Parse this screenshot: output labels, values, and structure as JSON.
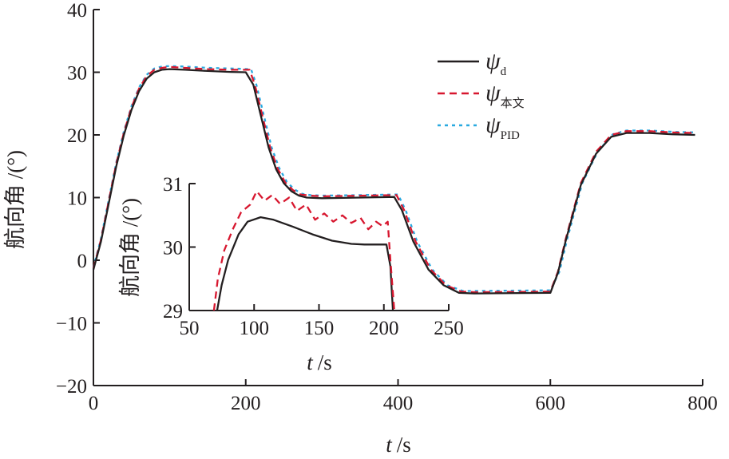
{
  "chart_data": {
    "type": "line",
    "main": {
      "xlabel_var": "t",
      "xlabel_unit": "/s",
      "ylabel": "航向角 /(°)",
      "xlim": [
        0,
        800
      ],
      "ylim": [
        -20,
        40
      ],
      "xticks": [
        "0",
        "200",
        "400",
        "600",
        "800"
      ],
      "yticks": [
        "−20",
        "−10",
        "0",
        "10",
        "20",
        "30",
        "40"
      ],
      "legend_position": "top-right",
      "series": [
        {
          "name": "ψ",
          "sub": "d",
          "color": "#231f20",
          "style": "solid",
          "points": [
            [
              0,
              -1.5
            ],
            [
              10,
              3
            ],
            [
              20,
              9
            ],
            [
              30,
              15
            ],
            [
              40,
              20
            ],
            [
              50,
              24
            ],
            [
              60,
              27
            ],
            [
              70,
              29
            ],
            [
              80,
              30
            ],
            [
              90,
              30.4
            ],
            [
              100,
              30.5
            ],
            [
              120,
              30.4
            ],
            [
              150,
              30.2
            ],
            [
              180,
              30.05
            ],
            [
              200,
              30
            ],
            [
              210,
              28
            ],
            [
              220,
              23
            ],
            [
              230,
              18
            ],
            [
              240,
              14.5
            ],
            [
              250,
              12.3
            ],
            [
              260,
              11
            ],
            [
              270,
              10.3
            ],
            [
              280,
              10
            ],
            [
              300,
              9.9
            ],
            [
              350,
              10
            ],
            [
              395,
              10.1
            ],
            [
              405,
              8
            ],
            [
              420,
              3
            ],
            [
              440,
              -1.5
            ],
            [
              460,
              -4
            ],
            [
              480,
              -5.2
            ],
            [
              500,
              -5.3
            ],
            [
              600,
              -5.2
            ],
            [
              610,
              -2
            ],
            [
              620,
              3
            ],
            [
              640,
              12
            ],
            [
              660,
              17
            ],
            [
              680,
              19.7
            ],
            [
              700,
              20.3
            ],
            [
              730,
              20.3
            ],
            [
              760,
              20.1
            ],
            [
              790,
              20
            ]
          ]
        },
        {
          "name": "ψ",
          "sub": "本文",
          "color": "#d7172f",
          "style": "dashed",
          "points": [
            [
              0,
              -1.3
            ],
            [
              10,
              3.3
            ],
            [
              20,
              9.4
            ],
            [
              30,
              15.4
            ],
            [
              40,
              20.4
            ],
            [
              50,
              24.4
            ],
            [
              60,
              27.4
            ],
            [
              70,
              29.4
            ],
            [
              80,
              30.4
            ],
            [
              90,
              30.7
            ],
            [
              100,
              30.85
            ],
            [
              120,
              30.7
            ],
            [
              150,
              30.5
            ],
            [
              180,
              30.4
            ],
            [
              205,
              30.4
            ],
            [
              212,
              28
            ],
            [
              222,
              23
            ],
            [
              232,
              18
            ],
            [
              242,
              14.6
            ],
            [
              252,
              12.4
            ],
            [
              262,
              11.2
            ],
            [
              272,
              10.5
            ],
            [
              285,
              10.3
            ],
            [
              300,
              10.2
            ],
            [
              350,
              10.3
            ],
            [
              398,
              10.4
            ],
            [
              408,
              8
            ],
            [
              423,
              3
            ],
            [
              443,
              -1.5
            ],
            [
              463,
              -4
            ],
            [
              483,
              -5
            ],
            [
              500,
              -5.1
            ],
            [
              600,
              -5
            ],
            [
              610,
              -1.8
            ],
            [
              620,
              3.3
            ],
            [
              640,
              12.3
            ],
            [
              660,
              17.3
            ],
            [
              680,
              20
            ],
            [
              700,
              20.6
            ],
            [
              730,
              20.6
            ],
            [
              760,
              20.4
            ],
            [
              790,
              20.3
            ]
          ]
        },
        {
          "name": "ψ",
          "sub": "PID",
          "color": "#29a9e0",
          "style": "dotted",
          "points": [
            [
              0,
              -1.2
            ],
            [
              10,
              3.5
            ],
            [
              20,
              9.6
            ],
            [
              30,
              15.6
            ],
            [
              40,
              20.6
            ],
            [
              50,
              24.6
            ],
            [
              60,
              27.6
            ],
            [
              70,
              29.6
            ],
            [
              80,
              30.6
            ],
            [
              90,
              30.9
            ],
            [
              100,
              31
            ],
            [
              120,
              30.9
            ],
            [
              150,
              30.7
            ],
            [
              180,
              30.6
            ],
            [
              207,
              30.5
            ],
            [
              214,
              28
            ],
            [
              224,
              23
            ],
            [
              234,
              18
            ],
            [
              244,
              14.7
            ],
            [
              254,
              12.5
            ],
            [
              264,
              11.3
            ],
            [
              274,
              10.6
            ],
            [
              285,
              10.4
            ],
            [
              300,
              10.3
            ],
            [
              350,
              10.4
            ],
            [
              400,
              10.5
            ],
            [
              410,
              8
            ],
            [
              425,
              3
            ],
            [
              445,
              -1.5
            ],
            [
              465,
              -4
            ],
            [
              485,
              -4.9
            ],
            [
              500,
              -4.9
            ],
            [
              600,
              -4.8
            ],
            [
              612,
              -1.8
            ],
            [
              622,
              3.3
            ],
            [
              642,
              12.3
            ],
            [
              662,
              17.3
            ],
            [
              682,
              20.1
            ],
            [
              700,
              20.7
            ],
            [
              730,
              20.7
            ],
            [
              760,
              20.5
            ],
            [
              790,
              20.4
            ]
          ]
        }
      ]
    },
    "inset": {
      "xlabel_var": "t",
      "xlabel_unit": "/s",
      "ylabel": "航向角 /(°)",
      "xlim": [
        50,
        250
      ],
      "ylim": [
        29,
        31
      ],
      "xticks": [
        "50",
        "100",
        "150",
        "200",
        "250"
      ],
      "yticks": [
        "29",
        "30",
        "31"
      ],
      "series": [
        {
          "name": "ψd",
          "color": "#231f20",
          "style": "solid",
          "points": [
            [
              71.5,
              29
            ],
            [
              75,
              29.4
            ],
            [
              80,
              29.8
            ],
            [
              88,
              30.2
            ],
            [
              95,
              30.4
            ],
            [
              105,
              30.47
            ],
            [
              115,
              30.43
            ],
            [
              130,
              30.32
            ],
            [
              145,
              30.2
            ],
            [
              160,
              30.1
            ],
            [
              175,
              30.05
            ],
            [
              185,
              30.04
            ],
            [
              202,
              30.04
            ],
            [
              205,
              29.7
            ],
            [
              207,
              29
            ]
          ]
        },
        {
          "name": "ψ本文",
          "color": "#d7172f",
          "style": "dashed",
          "points": [
            [
              69,
              29
            ],
            [
              72,
              29.5
            ],
            [
              77,
              29.95
            ],
            [
              84,
              30.3
            ],
            [
              90,
              30.55
            ],
            [
              97,
              30.67
            ],
            [
              102,
              30.88
            ],
            [
              108,
              30.73
            ],
            [
              114,
              30.82
            ],
            [
              120,
              30.68
            ],
            [
              127,
              30.78
            ],
            [
              133,
              30.57
            ],
            [
              140,
              30.67
            ],
            [
              147,
              30.43
            ],
            [
              154,
              30.53
            ],
            [
              161,
              30.4
            ],
            [
              168,
              30.5
            ],
            [
              175,
              30.38
            ],
            [
              182,
              30.46
            ],
            [
              188,
              30.28
            ],
            [
              194,
              30.4
            ],
            [
              199,
              30.33
            ],
            [
              203,
              30.4
            ],
            [
              205,
              29.8
            ],
            [
              208,
              29
            ]
          ]
        }
      ]
    }
  }
}
